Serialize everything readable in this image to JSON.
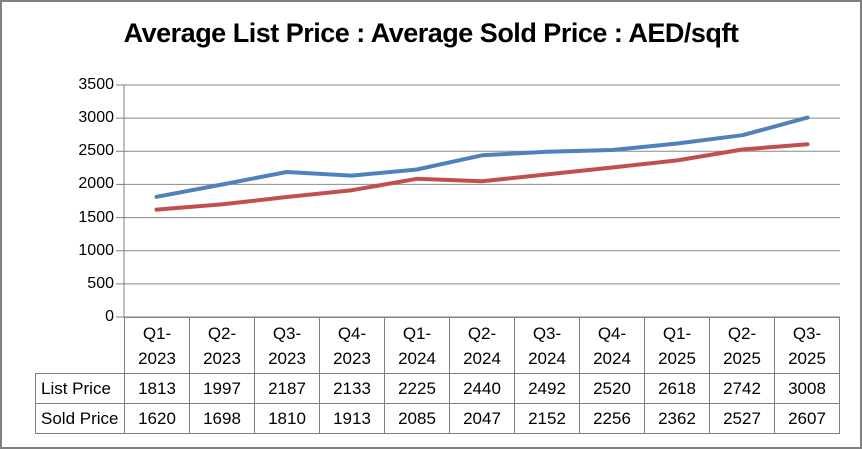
{
  "window": {
    "background": "#ffffff",
    "border_color": "#808080"
  },
  "chart_data": {
    "type": "line",
    "title": "Average List Price : Average Sold Price : AED/sqft",
    "categories": [
      "Q1-2023",
      "Q2-2023",
      "Q3-2023",
      "Q4-2023",
      "Q1-2024",
      "Q2-2024",
      "Q3-2024",
      "Q4-2024",
      "Q1-2025",
      "Q2-2025",
      "Q3-2025"
    ],
    "series": [
      {
        "name": "List Price",
        "color": "#4F81BD",
        "values": [
          1813,
          1997,
          2187,
          2133,
          2225,
          2440,
          2492,
          2520,
          2618,
          2742,
          3008
        ]
      },
      {
        "name": "Sold Price",
        "color": "#C0504D",
        "values": [
          1620,
          1698,
          1810,
          1913,
          2085,
          2047,
          2152,
          2256,
          2362,
          2527,
          2607
        ]
      }
    ],
    "ylim": [
      0,
      3500
    ],
    "yticks": [
      0,
      500,
      1000,
      1500,
      2000,
      2500,
      3000,
      3500
    ],
    "xlabel": "",
    "ylabel": "",
    "grid": "horizontal-only",
    "gridline_color": "#8A8A8A",
    "axis_color": "#7F7F7F",
    "table_border_color": "#7F7F7F",
    "legend_position": "data-table-below-axis"
  }
}
